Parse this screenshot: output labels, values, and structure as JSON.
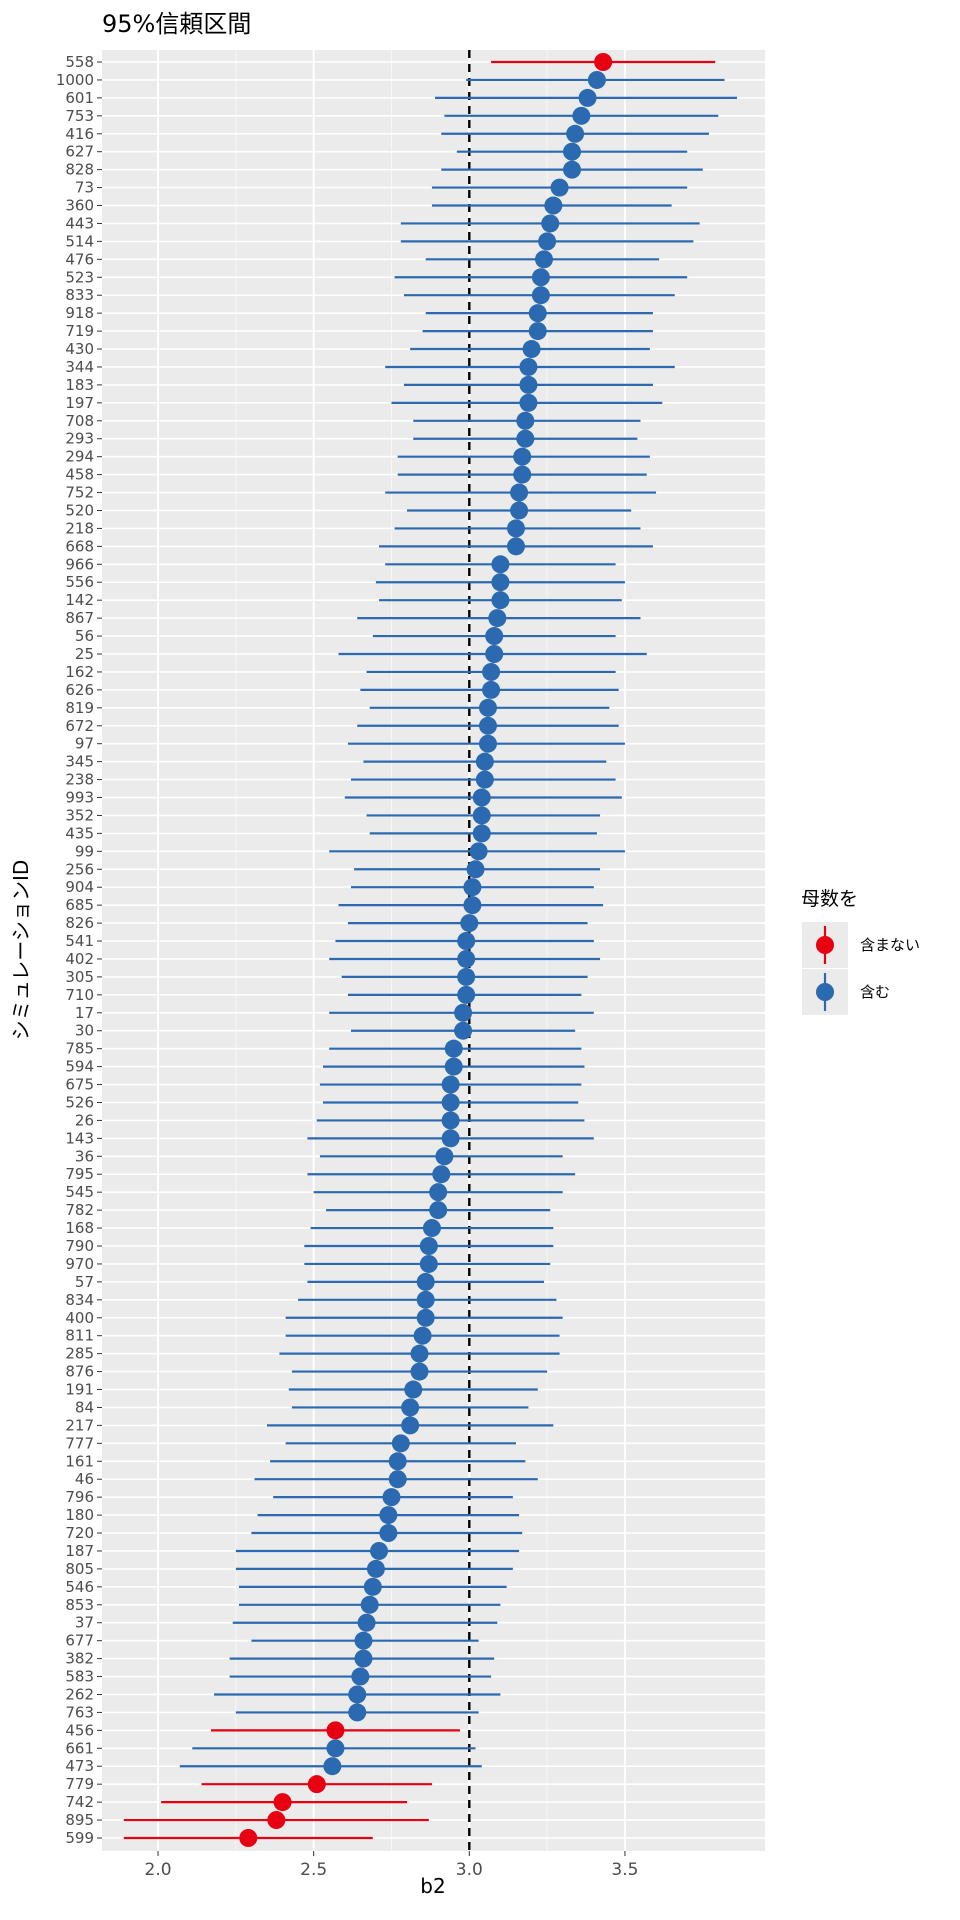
{
  "chart_data": {
    "type": "scatter",
    "title": "95%信頼区間",
    "xlabel": "b2",
    "ylabel": "シミュレーションID",
    "xlim": [
      1.82,
      3.95
    ],
    "x_ticks": [
      "2.0",
      "2.5",
      "3.0",
      "3.5"
    ],
    "x_tick_values": [
      2.0,
      2.5,
      3.0,
      3.5
    ],
    "reference_line": 3.0,
    "grid": true,
    "legend": {
      "title": "母数を",
      "placement": "right",
      "items": [
        {
          "label": "含まない",
          "color": "#E60012"
        },
        {
          "label": "含む",
          "color": "#2B6AB0"
        }
      ]
    },
    "series": [
      {
        "id": "558",
        "estimate": 3.43,
        "lower": 3.07,
        "upper": 3.79,
        "contains": false
      },
      {
        "id": "1000",
        "estimate": 3.41,
        "lower": 2.99,
        "upper": 3.82,
        "contains": true
      },
      {
        "id": "601",
        "estimate": 3.38,
        "lower": 2.89,
        "upper": 3.86,
        "contains": true
      },
      {
        "id": "753",
        "estimate": 3.36,
        "lower": 2.92,
        "upper": 3.8,
        "contains": true
      },
      {
        "id": "416",
        "estimate": 3.34,
        "lower": 2.91,
        "upper": 3.77,
        "contains": true
      },
      {
        "id": "627",
        "estimate": 3.33,
        "lower": 2.96,
        "upper": 3.7,
        "contains": true
      },
      {
        "id": "828",
        "estimate": 3.33,
        "lower": 2.91,
        "upper": 3.75,
        "contains": true
      },
      {
        "id": "73",
        "estimate": 3.29,
        "lower": 2.88,
        "upper": 3.7,
        "contains": true
      },
      {
        "id": "360",
        "estimate": 3.27,
        "lower": 2.88,
        "upper": 3.65,
        "contains": true
      },
      {
        "id": "443",
        "estimate": 3.26,
        "lower": 2.78,
        "upper": 3.74,
        "contains": true
      },
      {
        "id": "514",
        "estimate": 3.25,
        "lower": 2.78,
        "upper": 3.72,
        "contains": true
      },
      {
        "id": "476",
        "estimate": 3.24,
        "lower": 2.86,
        "upper": 3.61,
        "contains": true
      },
      {
        "id": "523",
        "estimate": 3.23,
        "lower": 2.76,
        "upper": 3.7,
        "contains": true
      },
      {
        "id": "833",
        "estimate": 3.23,
        "lower": 2.79,
        "upper": 3.66,
        "contains": true
      },
      {
        "id": "918",
        "estimate": 3.22,
        "lower": 2.86,
        "upper": 3.59,
        "contains": true
      },
      {
        "id": "719",
        "estimate": 3.22,
        "lower": 2.85,
        "upper": 3.59,
        "contains": true
      },
      {
        "id": "430",
        "estimate": 3.2,
        "lower": 2.81,
        "upper": 3.58,
        "contains": true
      },
      {
        "id": "344",
        "estimate": 3.19,
        "lower": 2.73,
        "upper": 3.66,
        "contains": true
      },
      {
        "id": "183",
        "estimate": 3.19,
        "lower": 2.79,
        "upper": 3.59,
        "contains": true
      },
      {
        "id": "197",
        "estimate": 3.19,
        "lower": 2.75,
        "upper": 3.62,
        "contains": true
      },
      {
        "id": "708",
        "estimate": 3.18,
        "lower": 2.82,
        "upper": 3.55,
        "contains": true
      },
      {
        "id": "293",
        "estimate": 3.18,
        "lower": 2.82,
        "upper": 3.54,
        "contains": true
      },
      {
        "id": "294",
        "estimate": 3.17,
        "lower": 2.77,
        "upper": 3.58,
        "contains": true
      },
      {
        "id": "458",
        "estimate": 3.17,
        "lower": 2.77,
        "upper": 3.57,
        "contains": true
      },
      {
        "id": "752",
        "estimate": 3.16,
        "lower": 2.73,
        "upper": 3.6,
        "contains": true
      },
      {
        "id": "520",
        "estimate": 3.16,
        "lower": 2.8,
        "upper": 3.52,
        "contains": true
      },
      {
        "id": "218",
        "estimate": 3.15,
        "lower": 2.76,
        "upper": 3.55,
        "contains": true
      },
      {
        "id": "668",
        "estimate": 3.15,
        "lower": 2.71,
        "upper": 3.59,
        "contains": true
      },
      {
        "id": "966",
        "estimate": 3.1,
        "lower": 2.73,
        "upper": 3.47,
        "contains": true
      },
      {
        "id": "556",
        "estimate": 3.1,
        "lower": 2.7,
        "upper": 3.5,
        "contains": true
      },
      {
        "id": "142",
        "estimate": 3.1,
        "lower": 2.71,
        "upper": 3.49,
        "contains": true
      },
      {
        "id": "867",
        "estimate": 3.09,
        "lower": 2.64,
        "upper": 3.55,
        "contains": true
      },
      {
        "id": "56",
        "estimate": 3.08,
        "lower": 2.69,
        "upper": 3.47,
        "contains": true
      },
      {
        "id": "25",
        "estimate": 3.08,
        "lower": 2.58,
        "upper": 3.57,
        "contains": true
      },
      {
        "id": "162",
        "estimate": 3.07,
        "lower": 2.67,
        "upper": 3.47,
        "contains": true
      },
      {
        "id": "626",
        "estimate": 3.07,
        "lower": 2.65,
        "upper": 3.48,
        "contains": true
      },
      {
        "id": "819",
        "estimate": 3.06,
        "lower": 2.68,
        "upper": 3.45,
        "contains": true
      },
      {
        "id": "672",
        "estimate": 3.06,
        "lower": 2.64,
        "upper": 3.48,
        "contains": true
      },
      {
        "id": "97",
        "estimate": 3.06,
        "lower": 2.61,
        "upper": 3.5,
        "contains": true
      },
      {
        "id": "345",
        "estimate": 3.05,
        "lower": 2.66,
        "upper": 3.44,
        "contains": true
      },
      {
        "id": "238",
        "estimate": 3.05,
        "lower": 2.62,
        "upper": 3.47,
        "contains": true
      },
      {
        "id": "993",
        "estimate": 3.04,
        "lower": 2.6,
        "upper": 3.49,
        "contains": true
      },
      {
        "id": "352",
        "estimate": 3.04,
        "lower": 2.67,
        "upper": 3.42,
        "contains": true
      },
      {
        "id": "435",
        "estimate": 3.04,
        "lower": 2.68,
        "upper": 3.41,
        "contains": true
      },
      {
        "id": "99",
        "estimate": 3.03,
        "lower": 2.55,
        "upper": 3.5,
        "contains": true
      },
      {
        "id": "256",
        "estimate": 3.02,
        "lower": 2.63,
        "upper": 3.42,
        "contains": true
      },
      {
        "id": "904",
        "estimate": 3.01,
        "lower": 2.62,
        "upper": 3.4,
        "contains": true
      },
      {
        "id": "685",
        "estimate": 3.01,
        "lower": 2.58,
        "upper": 3.43,
        "contains": true
      },
      {
        "id": "826",
        "estimate": 3.0,
        "lower": 2.61,
        "upper": 3.38,
        "contains": true
      },
      {
        "id": "541",
        "estimate": 2.99,
        "lower": 2.57,
        "upper": 3.4,
        "contains": true
      },
      {
        "id": "402",
        "estimate": 2.99,
        "lower": 2.55,
        "upper": 3.42,
        "contains": true
      },
      {
        "id": "305",
        "estimate": 2.99,
        "lower": 2.59,
        "upper": 3.38,
        "contains": true
      },
      {
        "id": "710",
        "estimate": 2.99,
        "lower": 2.61,
        "upper": 3.36,
        "contains": true
      },
      {
        "id": "17",
        "estimate": 2.98,
        "lower": 2.55,
        "upper": 3.4,
        "contains": true
      },
      {
        "id": "30",
        "estimate": 2.98,
        "lower": 2.62,
        "upper": 3.34,
        "contains": true
      },
      {
        "id": "785",
        "estimate": 2.95,
        "lower": 2.55,
        "upper": 3.36,
        "contains": true
      },
      {
        "id": "594",
        "estimate": 2.95,
        "lower": 2.53,
        "upper": 3.37,
        "contains": true
      },
      {
        "id": "675",
        "estimate": 2.94,
        "lower": 2.52,
        "upper": 3.36,
        "contains": true
      },
      {
        "id": "526",
        "estimate": 2.94,
        "lower": 2.53,
        "upper": 3.35,
        "contains": true
      },
      {
        "id": "26",
        "estimate": 2.94,
        "lower": 2.51,
        "upper": 3.37,
        "contains": true
      },
      {
        "id": "143",
        "estimate": 2.94,
        "lower": 2.48,
        "upper": 3.4,
        "contains": true
      },
      {
        "id": "36",
        "estimate": 2.92,
        "lower": 2.52,
        "upper": 3.3,
        "contains": true
      },
      {
        "id": "795",
        "estimate": 2.91,
        "lower": 2.48,
        "upper": 3.34,
        "contains": true
      },
      {
        "id": "545",
        "estimate": 2.9,
        "lower": 2.5,
        "upper": 3.3,
        "contains": true
      },
      {
        "id": "782",
        "estimate": 2.9,
        "lower": 2.54,
        "upper": 3.26,
        "contains": true
      },
      {
        "id": "168",
        "estimate": 2.88,
        "lower": 2.49,
        "upper": 3.27,
        "contains": true
      },
      {
        "id": "790",
        "estimate": 2.87,
        "lower": 2.47,
        "upper": 3.27,
        "contains": true
      },
      {
        "id": "970",
        "estimate": 2.87,
        "lower": 2.47,
        "upper": 3.26,
        "contains": true
      },
      {
        "id": "57",
        "estimate": 2.86,
        "lower": 2.48,
        "upper": 3.24,
        "contains": true
      },
      {
        "id": "834",
        "estimate": 2.86,
        "lower": 2.45,
        "upper": 3.28,
        "contains": true
      },
      {
        "id": "400",
        "estimate": 2.86,
        "lower": 2.41,
        "upper": 3.3,
        "contains": true
      },
      {
        "id": "811",
        "estimate": 2.85,
        "lower": 2.41,
        "upper": 3.29,
        "contains": true
      },
      {
        "id": "285",
        "estimate": 2.84,
        "lower": 2.39,
        "upper": 3.29,
        "contains": true
      },
      {
        "id": "876",
        "estimate": 2.84,
        "lower": 2.43,
        "upper": 3.25,
        "contains": true
      },
      {
        "id": "191",
        "estimate": 2.82,
        "lower": 2.42,
        "upper": 3.22,
        "contains": true
      },
      {
        "id": "84",
        "estimate": 2.81,
        "lower": 2.43,
        "upper": 3.19,
        "contains": true
      },
      {
        "id": "217",
        "estimate": 2.81,
        "lower": 2.35,
        "upper": 3.27,
        "contains": true
      },
      {
        "id": "777",
        "estimate": 2.78,
        "lower": 2.41,
        "upper": 3.15,
        "contains": true
      },
      {
        "id": "161",
        "estimate": 2.77,
        "lower": 2.36,
        "upper": 3.18,
        "contains": true
      },
      {
        "id": "46",
        "estimate": 2.77,
        "lower": 2.31,
        "upper": 3.22,
        "contains": true
      },
      {
        "id": "796",
        "estimate": 2.75,
        "lower": 2.37,
        "upper": 3.14,
        "contains": true
      },
      {
        "id": "180",
        "estimate": 2.74,
        "lower": 2.32,
        "upper": 3.16,
        "contains": true
      },
      {
        "id": "720",
        "estimate": 2.74,
        "lower": 2.3,
        "upper": 3.17,
        "contains": true
      },
      {
        "id": "187",
        "estimate": 2.71,
        "lower": 2.25,
        "upper": 3.16,
        "contains": true
      },
      {
        "id": "805",
        "estimate": 2.7,
        "lower": 2.25,
        "upper": 3.14,
        "contains": true
      },
      {
        "id": "546",
        "estimate": 2.69,
        "lower": 2.26,
        "upper": 3.12,
        "contains": true
      },
      {
        "id": "853",
        "estimate": 2.68,
        "lower": 2.26,
        "upper": 3.1,
        "contains": true
      },
      {
        "id": "37",
        "estimate": 2.67,
        "lower": 2.24,
        "upper": 3.09,
        "contains": true
      },
      {
        "id": "677",
        "estimate": 2.66,
        "lower": 2.3,
        "upper": 3.03,
        "contains": true
      },
      {
        "id": "382",
        "estimate": 2.66,
        "lower": 2.23,
        "upper": 3.08,
        "contains": true
      },
      {
        "id": "583",
        "estimate": 2.65,
        "lower": 2.23,
        "upper": 3.07,
        "contains": true
      },
      {
        "id": "262",
        "estimate": 2.64,
        "lower": 2.18,
        "upper": 3.1,
        "contains": true
      },
      {
        "id": "763",
        "estimate": 2.64,
        "lower": 2.25,
        "upper": 3.03,
        "contains": true
      },
      {
        "id": "456",
        "estimate": 2.57,
        "lower": 2.17,
        "upper": 2.97,
        "contains": false
      },
      {
        "id": "661",
        "estimate": 2.57,
        "lower": 2.11,
        "upper": 3.02,
        "contains": true
      },
      {
        "id": "473",
        "estimate": 2.56,
        "lower": 2.07,
        "upper": 3.04,
        "contains": true
      },
      {
        "id": "779",
        "estimate": 2.51,
        "lower": 2.14,
        "upper": 2.88,
        "contains": false
      },
      {
        "id": "742",
        "estimate": 2.4,
        "lower": 2.01,
        "upper": 2.8,
        "contains": false
      },
      {
        "id": "895",
        "estimate": 2.38,
        "lower": 1.89,
        "upper": 2.87,
        "contains": false
      },
      {
        "id": "599",
        "estimate": 2.29,
        "lower": 1.89,
        "upper": 2.69,
        "contains": false
      }
    ]
  }
}
